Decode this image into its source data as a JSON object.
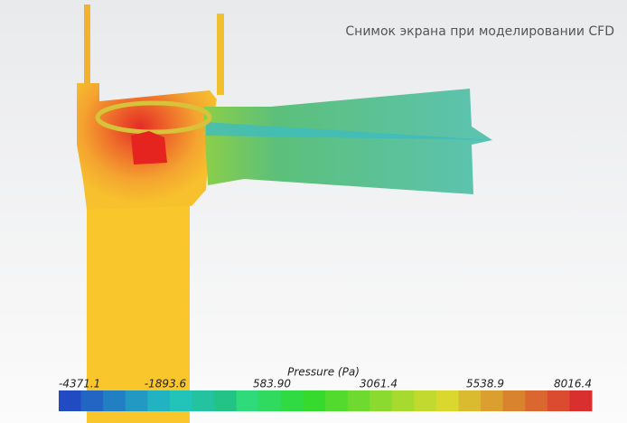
{
  "caption": "Снимок экрана при моделировании CFD",
  "colorbar": {
    "title": "Pressure (Pa)",
    "ticks": [
      "-4371.1",
      "-1893.6",
      "583.90",
      "3061.4",
      "5538.9",
      "8016.4"
    ]
  }
}
